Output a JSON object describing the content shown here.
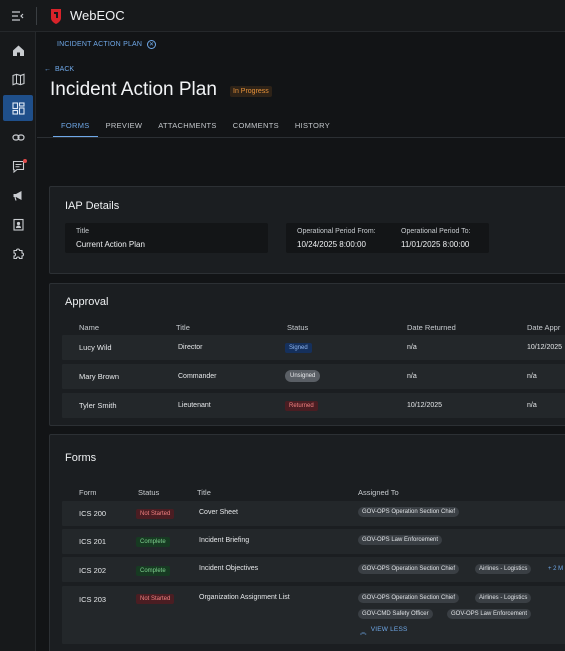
{
  "app": {
    "title": "WebEOC"
  },
  "breadcrumb": {
    "label": "INCIDENT ACTION PLAN"
  },
  "back": {
    "label": "BACK"
  },
  "page": {
    "title": "Incident Action Plan",
    "status": "In Progress"
  },
  "tabs": [
    {
      "label": "FORMS"
    },
    {
      "label": "PREVIEW"
    },
    {
      "label": "ATTACHMENTS"
    },
    {
      "label": "COMMENTS"
    },
    {
      "label": "HISTORY"
    }
  ],
  "iap": {
    "heading": "IAP Details",
    "title_label": "Title",
    "title_value": "Current Action Plan",
    "from_label": "Operational Period From:",
    "from_value": "10/24/2025 8:00:00",
    "to_label": "Operational Period To:",
    "to_value": "11/01/2025 8:00:00"
  },
  "approval": {
    "heading": "Approval",
    "columns": [
      "Name",
      "Title",
      "Status",
      "Date Returned",
      "Date Appr"
    ],
    "rows": [
      {
        "name": "Lucy Wild",
        "title": "Director",
        "status": "Signed",
        "date_returned": "n/a",
        "date_approved": "10/12/2025"
      },
      {
        "name": "Mary Brown",
        "title": "Commander",
        "status": "Unsigned",
        "date_returned": "n/a",
        "date_approved": "n/a"
      },
      {
        "name": "Tyler Smith",
        "title": "Lieutenant",
        "status": "Returned",
        "date_returned": "10/12/2025",
        "date_approved": "n/a"
      }
    ]
  },
  "forms": {
    "heading": "Forms",
    "columns": [
      "Form",
      "Status",
      "Title",
      "Assigned To"
    ],
    "rows": [
      {
        "form": "ICS 200",
        "status": "Not Started",
        "title": "Cover Sheet",
        "assigned": [
          "GOV-OPS Operation Section Chief"
        ]
      },
      {
        "form": "ICS 201",
        "status": "Complete",
        "title": "Incident Briefing",
        "assigned": [
          "GOV-OPS Law Enforcement"
        ]
      },
      {
        "form": "ICS 202",
        "status": "Complete",
        "title": "Incident Objectives",
        "assigned": [
          "GOV-OPS Operation Section Chief",
          "Airlines - Logistics"
        ],
        "more": "+ 2 M"
      },
      {
        "form": "ICS 203",
        "status": "Not Started",
        "title": "Organization Assignment List",
        "assigned": [
          "GOV-OPS Operation Section Chief",
          "Airlines - Logistics",
          "GOV-CMD Safety Officer",
          "GOV-OPS Law Enforcement"
        ],
        "view_less": "VIEW LESS"
      }
    ]
  },
  "colors": {
    "accent": "#6fa8e8",
    "active_nav": "#1f4f8a",
    "brand": "#d8232a"
  }
}
